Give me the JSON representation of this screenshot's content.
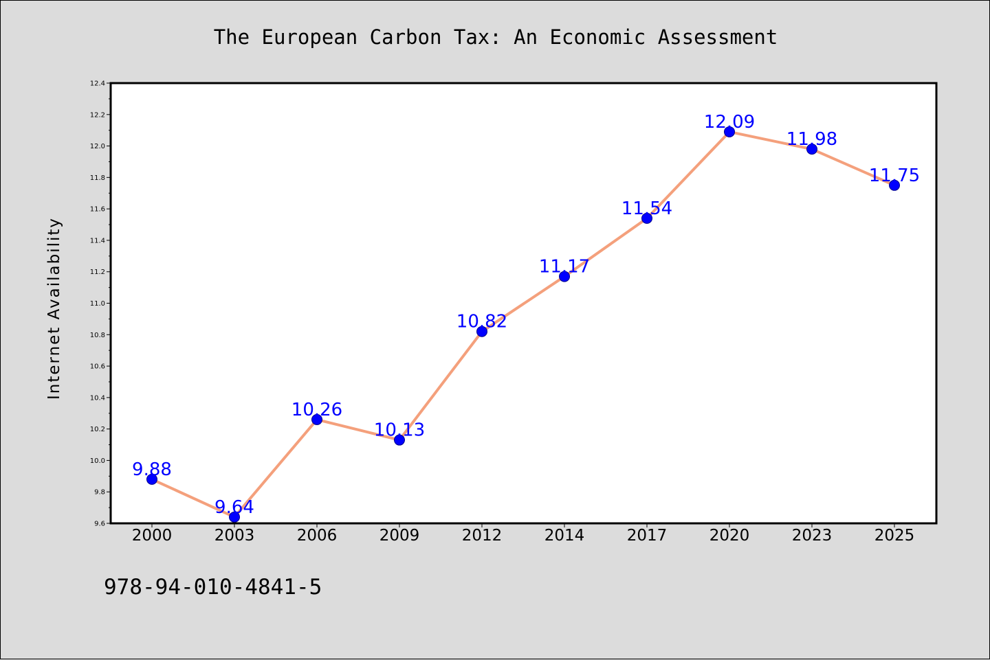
{
  "chart_data": {
    "type": "line",
    "title": "The European Carbon Tax: An Economic Assessment",
    "xlabel": "",
    "ylabel": "Internet Availability",
    "categories": [
      "2000",
      "2003",
      "2006",
      "2009",
      "2012",
      "2014",
      "2017",
      "2020",
      "2023",
      "2025"
    ],
    "series": [
      {
        "values": [
          9.88,
          9.64,
          10.26,
          10.13,
          10.82,
          11.17,
          11.54,
          12.09,
          11.98,
          11.75
        ],
        "line_color": "#f4a07c",
        "marker_color": "#0000ff"
      }
    ],
    "data_labels": [
      "9.88",
      "9.64",
      "10.26",
      "10.13",
      "10.82",
      "11.17",
      "11.54",
      "12.09",
      "11.98",
      "11.75"
    ],
    "data_label_color": "#0000ff",
    "ylim": [
      9.6,
      12.4
    ],
    "yticks": [
      "9.6",
      "9.8",
      "10.0",
      "10.2",
      "10.4",
      "10.6",
      "10.8",
      "11.0",
      "11.2",
      "11.4",
      "11.6",
      "11.8",
      "12.0",
      "12.2",
      "12.4"
    ],
    "grid": false,
    "legend": "none"
  },
  "footer": {
    "text": "978-94-010-4841-5"
  },
  "colors": {
    "background": "#dcdcdc",
    "plot_background": "#ffffff"
  }
}
